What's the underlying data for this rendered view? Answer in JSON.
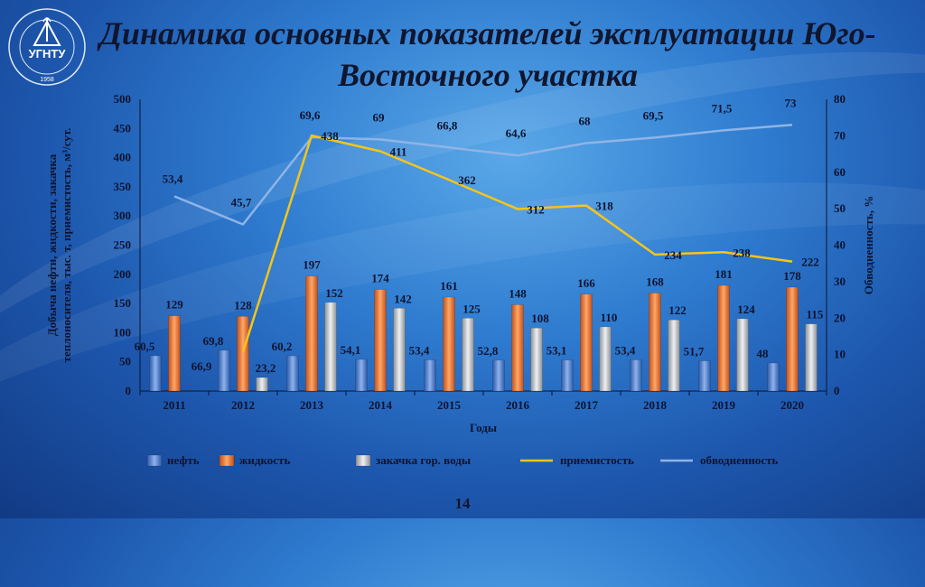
{
  "title": "Динамика основных показателей эксплуатации Юго-Восточного участка",
  "page_number": "14",
  "logo": {
    "name": "university-logo",
    "text": "УГНТУ",
    "year": "1958"
  },
  "colors": {
    "oil": "#4f7fd0",
    "liquid": "#e8712a",
    "injection": "#bfc3c8",
    "injectivity": "#f5c518",
    "water_cut": "#8fb4e6",
    "text": "#0d1330"
  },
  "chart_data": {
    "type": "bar",
    "categories": [
      "2011",
      "2012",
      "2013",
      "2014",
      "2015",
      "2016",
      "2017",
      "2018",
      "2019",
      "2020"
    ],
    "xlabel": "Годы",
    "ylabel": "Добыча нефти, жидкости, закачка теплоносителя, тыс. т, приемистость, м³/сут.",
    "y2label": "Обводненность, %",
    "ylim": [
      0,
      500
    ],
    "y2lim": [
      0,
      80
    ],
    "yticks": [
      0,
      50,
      100,
      150,
      200,
      250,
      300,
      350,
      400,
      450,
      500
    ],
    "y2ticks": [
      0,
      10,
      20,
      30,
      40,
      50,
      60,
      70,
      80
    ],
    "series": [
      {
        "name": "нефть",
        "type": "bar",
        "axis": "left",
        "values": [
          60.5,
          69.8,
          60.2,
          54.1,
          53.4,
          52.8,
          53.1,
          53.4,
          51.7,
          48
        ],
        "labels": [
          "60,5",
          "69,8",
          "60,2",
          "54,1",
          "53,4",
          "52,8",
          "53,1",
          "53,4",
          "51,7",
          "48"
        ]
      },
      {
        "name": "жидкость",
        "type": "bar",
        "axis": "left",
        "values": [
          129,
          128,
          197,
          174,
          161,
          148,
          166,
          168,
          181,
          178
        ],
        "labels": [
          "129",
          "128",
          "197",
          "174",
          "161",
          "148",
          "166",
          "168",
          "181",
          "178"
        ]
      },
      {
        "name": "закачка гор. воды",
        "type": "bar",
        "axis": "left",
        "values": [
          null,
          23.2,
          152,
          142,
          125,
          108,
          110,
          122,
          124,
          115
        ],
        "labels": [
          "",
          "23,2",
          "152",
          "142",
          "125",
          "108",
          "110",
          "122",
          "124",
          "115"
        ]
      },
      {
        "name": "приемистость",
        "type": "line",
        "axis": "left",
        "values": [
          null,
          66.9,
          438,
          411,
          362,
          312,
          318,
          234,
          238,
          222
        ],
        "labels": [
          "",
          "66,9",
          "438",
          "411",
          "362",
          "312",
          "318",
          "234",
          "238",
          "222"
        ]
      },
      {
        "name": "обводненность",
        "type": "line",
        "axis": "right",
        "values": [
          53.4,
          45.7,
          69.6,
          69,
          66.8,
          64.6,
          68,
          69.5,
          71.5,
          73
        ],
        "labels": [
          "53,4",
          "45,7",
          "69,6",
          "69",
          "66,8",
          "64,6",
          "68",
          "69,5",
          "71,5",
          "73"
        ]
      }
    ],
    "legend_position": "bottom",
    "grid": false
  }
}
